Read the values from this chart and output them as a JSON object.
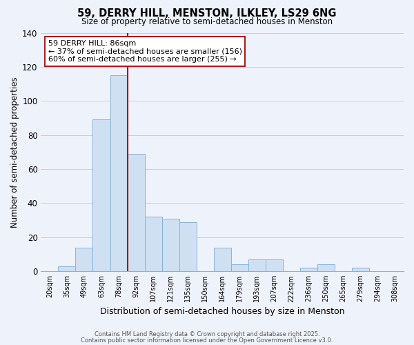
{
  "title": "59, DERRY HILL, MENSTON, ILKLEY, LS29 6NG",
  "subtitle": "Size of property relative to semi-detached houses in Menston",
  "xlabel": "Distribution of semi-detached houses by size in Menston",
  "ylabel": "Number of semi-detached properties",
  "bin_labels": [
    "20sqm",
    "35sqm",
    "49sqm",
    "63sqm",
    "78sqm",
    "92sqm",
    "107sqm",
    "121sqm",
    "135sqm",
    "150sqm",
    "164sqm",
    "179sqm",
    "193sqm",
    "207sqm",
    "222sqm",
    "236sqm",
    "250sqm",
    "265sqm",
    "279sqm",
    "294sqm",
    "308sqm"
  ],
  "bar_values": [
    0,
    3,
    14,
    89,
    115,
    69,
    32,
    31,
    29,
    0,
    14,
    4,
    7,
    7,
    0,
    2,
    4,
    0,
    2,
    0,
    0
  ],
  "bar_color": "#cfe0f2",
  "bar_edge_color": "#85b5de",
  "grid_color": "#c0d0e0",
  "background_color": "#eef2fa",
  "vline_position": 5,
  "vline_color": "#aa0000",
  "annotation_title": "59 DERRY HILL: 86sqm",
  "annotation_line1": "← 37% of semi-detached houses are smaller (156)",
  "annotation_line2": "60% of semi-detached houses are larger (255) →",
  "annotation_box_color": "#ffffff",
  "annotation_box_edge": "#aa0000",
  "ylim": [
    0,
    140
  ],
  "yticks": [
    0,
    20,
    40,
    60,
    80,
    100,
    120,
    140
  ],
  "footer1": "Contains HM Land Registry data © Crown copyright and database right 2025.",
  "footer2": "Contains public sector information licensed under the Open Government Licence v3.0."
}
